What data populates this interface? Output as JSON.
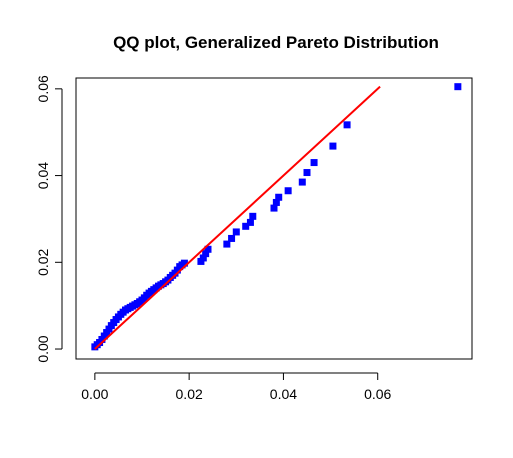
{
  "chart_data": {
    "type": "scatter",
    "title": "QQ plot, Generalized Pareto Distribution",
    "xlabel": "",
    "ylabel": "",
    "xlim": [
      -0.004,
      0.08
    ],
    "ylim": [
      -0.0023,
      0.0625
    ],
    "x_ticks": [
      0.0,
      0.02,
      0.04,
      0.06
    ],
    "x_tick_labels": [
      "0.00",
      "0.02",
      "0.04",
      "0.06"
    ],
    "y_ticks": [
      0.0,
      0.02,
      0.04,
      0.06
    ],
    "y_tick_labels": [
      "0.00",
      "0.02",
      "0.04",
      "0.06"
    ],
    "grid": false,
    "colors": {
      "points": "#0000ff",
      "reference_line": "#ff0000"
    },
    "reference_line": {
      "x": [
        0.0,
        0.0605
      ],
      "y": [
        0.0,
        0.0605
      ]
    },
    "series": [
      {
        "x": [
          0.0,
          0.0005,
          0.001,
          0.0015,
          0.002,
          0.0025,
          0.003,
          0.0035,
          0.004,
          0.0045,
          0.005,
          0.0055,
          0.006,
          0.0065,
          0.007,
          0.0075,
          0.008,
          0.0085,
          0.009,
          0.0095,
          0.01,
          0.0105,
          0.011,
          0.0115,
          0.012,
          0.0125,
          0.013,
          0.0135,
          0.014,
          0.0145,
          0.015,
          0.0155,
          0.016,
          0.0165,
          0.017,
          0.0175,
          0.018,
          0.0185,
          0.019,
          0.0225,
          0.023,
          0.0235,
          0.024,
          0.028,
          0.029,
          0.03,
          0.032,
          0.033,
          0.0335,
          0.038,
          0.0385,
          0.039,
          0.041,
          0.044,
          0.045,
          0.0465,
          0.0505,
          0.0535,
          0.077
        ],
        "y": [
          0.0005,
          0.001,
          0.0015,
          0.0022,
          0.003,
          0.0038,
          0.0046,
          0.0054,
          0.0061,
          0.0068,
          0.0074,
          0.008,
          0.0085,
          0.009,
          0.0093,
          0.0096,
          0.0099,
          0.0102,
          0.0105,
          0.0109,
          0.0113,
          0.0118,
          0.0124,
          0.0129,
          0.0133,
          0.0137,
          0.0141,
          0.0145,
          0.0148,
          0.0151,
          0.0155,
          0.0159,
          0.0165,
          0.017,
          0.0175,
          0.0182,
          0.019,
          0.0194,
          0.0198,
          0.0202,
          0.021,
          0.022,
          0.023,
          0.0242,
          0.0255,
          0.027,
          0.0283,
          0.0292,
          0.0306,
          0.0325,
          0.0338,
          0.035,
          0.0365,
          0.0385,
          0.0407,
          0.043,
          0.0468,
          0.0517,
          0.0605
        ]
      }
    ]
  }
}
